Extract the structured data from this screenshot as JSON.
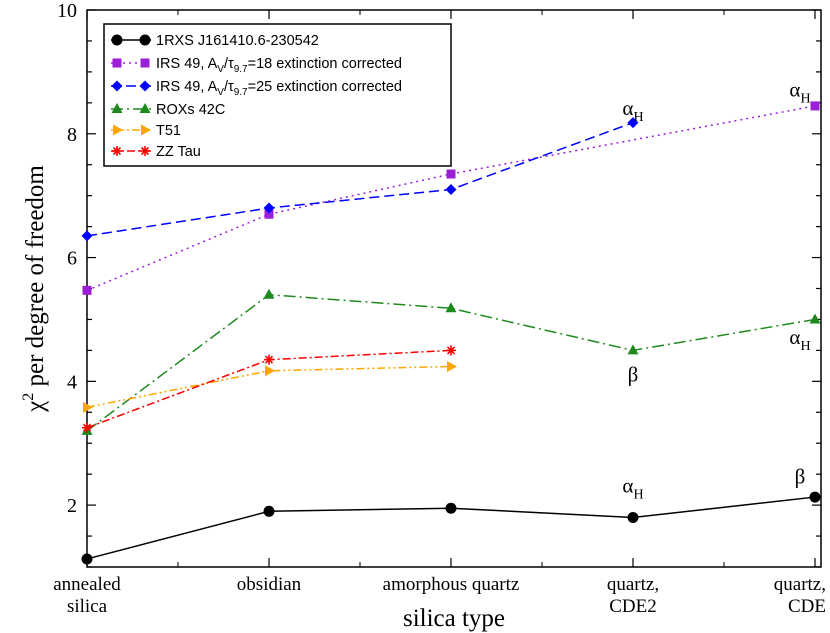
{
  "chart_data": {
    "type": "line",
    "title": "",
    "xlabel": "silica type",
    "ylabel": "per degree of freedom",
    "ylabel_symbol": "χ",
    "ylabel_superscript": "2",
    "ylim": [
      1,
      10
    ],
    "yticks": [
      2,
      4,
      6,
      8,
      10
    ],
    "categories": [
      {
        "line1": "annealed",
        "line2": "silica"
      },
      {
        "line1": "obsidian",
        "line2": ""
      },
      {
        "line1": "amorphous quartz",
        "line2": ""
      },
      {
        "line1": "quartz,",
        "line2": "CDE2"
      },
      {
        "line1": "quartz,",
        "line2": "CDE"
      }
    ],
    "series": [
      {
        "id": "s1",
        "name": "1RXS J161410.6-230542",
        "color": "#000000",
        "marker": "circle",
        "dash": "",
        "values": [
          1.13,
          1.9,
          1.95,
          1.8,
          2.13
        ]
      },
      {
        "id": "s2",
        "name": "IRS 49, A_V/τ_9.7=18 extinction corrected",
        "legend_parts": [
          "IRS 49, A",
          "V",
          "/τ",
          "9.7",
          "=18 extinction corrected"
        ],
        "color": "#9b1fd6",
        "marker": "square",
        "dash": "2,4",
        "values": [
          5.47,
          6.7,
          7.35,
          null,
          8.45
        ],
        "connect_gaps": true
      },
      {
        "id": "s3",
        "name": "IRS 49, A_V/τ_9.7=25 extinction corrected",
        "legend_parts": [
          "IRS 49, A",
          "V",
          "/τ",
          "9.7",
          "=25 extinction corrected"
        ],
        "color": "#0000ff",
        "marker": "diamond",
        "dash": "10,5",
        "values": [
          6.35,
          6.8,
          7.1,
          8.18,
          null
        ]
      },
      {
        "id": "s4",
        "name": "ROXs 42C",
        "color": "#1e8a1e",
        "marker": "triangle-up",
        "dash": "12,4,2,4",
        "values": [
          3.2,
          5.4,
          5.18,
          4.5,
          5.0
        ]
      },
      {
        "id": "s5",
        "name": "T51",
        "color": "#ffa500",
        "marker": "triangle-right",
        "dash": "8,3,2,3,2,3",
        "values": [
          3.58,
          4.17,
          4.24,
          null,
          null
        ]
      },
      {
        "id": "s6",
        "name": "ZZ Tau",
        "color": "#ff0000",
        "marker": "star",
        "dash": "8,3,2,3",
        "values": [
          3.25,
          4.35,
          4.5,
          null,
          null
        ]
      }
    ],
    "annotations": [
      {
        "kind": "alpha",
        "text": "α",
        "sub": "H",
        "cat": 3,
        "y": 8.3,
        "note": "near IRS 49 (25) at quartz, CDE2"
      },
      {
        "kind": "alpha",
        "text": "α",
        "sub": "H",
        "cat": 4,
        "y": 8.6,
        "note": "above IRS 49 (18) at quartz, CDE"
      },
      {
        "kind": "beta",
        "text": "β",
        "sub": "",
        "cat": 3,
        "y": 4.0,
        "note": "below ROXs 42C at quartz, CDE2"
      },
      {
        "kind": "alpha",
        "text": "α",
        "sub": "H",
        "cat": 4,
        "y": 4.6,
        "note": "below ROXs 42C at quartz, CDE"
      },
      {
        "kind": "alpha",
        "text": "α",
        "sub": "H",
        "cat": 3,
        "y": 2.2,
        "note": "above 1RXS at quartz, CDE2"
      },
      {
        "kind": "beta",
        "text": "β",
        "sub": "",
        "cat": 4,
        "y": 2.35,
        "note": "above 1RXS at quartz, CDE"
      }
    ]
  }
}
